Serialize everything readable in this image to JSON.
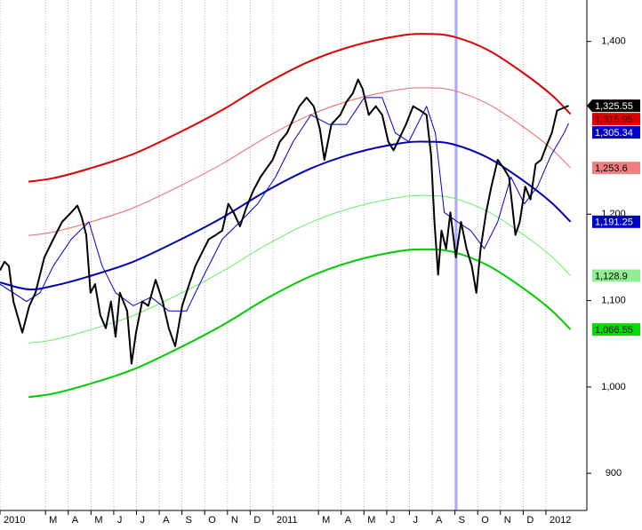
{
  "chart_data": {
    "type": "line",
    "xlim": [
      0,
      25.8
    ],
    "ylim": [
      857,
      1448
    ],
    "yticks": [
      900,
      {
        "value": 1000,
        "label": "1,000"
      },
      {
        "value": 1100,
        "label": "1,100"
      },
      {
        "value": 1200,
        "label": "1,200"
      },
      {
        "value": 1400,
        "label": "1,400"
      }
    ],
    "xticks": [
      {
        "value": 0,
        "label": "2010"
      },
      {
        "value": 2,
        "label": "M"
      },
      {
        "value": 3,
        "label": "A"
      },
      {
        "value": 4,
        "label": "M"
      },
      {
        "value": 5,
        "label": "J"
      },
      {
        "value": 6,
        "label": "J"
      },
      {
        "value": 7,
        "label": "A"
      },
      {
        "value": 8,
        "label": "S"
      },
      {
        "value": 9,
        "label": "O"
      },
      {
        "value": 10,
        "label": "N"
      },
      {
        "value": 11,
        "label": "D"
      },
      {
        "value": 12,
        "label": "2011"
      },
      {
        "value": 14,
        "label": "M"
      },
      {
        "value": 15,
        "label": "A"
      },
      {
        "value": 16,
        "label": "M"
      },
      {
        "value": 17,
        "label": "J"
      },
      {
        "value": 18,
        "label": "J"
      },
      {
        "value": 19,
        "label": "A"
      },
      {
        "value": 20,
        "label": "S"
      },
      {
        "value": 21,
        "label": "O"
      },
      {
        "value": 22,
        "label": "N"
      },
      {
        "value": 23,
        "label": "D"
      },
      {
        "value": 24,
        "label": "2012"
      }
    ],
    "grid": true,
    "series": [
      {
        "color": "#dd0000",
        "width": 2,
        "smooth": true,
        "x": [
          1.25,
          2.34,
          3.91,
          5.86,
          7.81,
          9.77,
          11.72,
          13.67,
          15.63,
          17.58,
          18.75,
          19.92,
          21.48,
          23.05,
          24.22,
          25.08
        ],
        "values": [
          1237.7,
          1241.7,
          1252.7,
          1269.7,
          1293.7,
          1320.7,
          1351.7,
          1377.7,
          1395.7,
          1406.7,
          1408.7,
          1405.7,
          1389.7,
          1362.7,
          1338.7,
          1315.95
        ],
        "last_label": "1,315.95",
        "label_fill": "#e00000",
        "label_text": "#3a0000"
      },
      {
        "color": "#ee6666",
        "width": 1,
        "smooth": true,
        "x": [
          1.25,
          2.34,
          3.91,
          5.86,
          7.81,
          9.77,
          11.72,
          13.67,
          15.63,
          17.58,
          18.75,
          19.92,
          21.48,
          23.05,
          24.22,
          25.08
        ],
        "values": [
          1175.35,
          1179.35,
          1190.35,
          1207.35,
          1231.35,
          1258.35,
          1289.35,
          1315.35,
          1333.35,
          1344.35,
          1346.35,
          1343.35,
          1327.35,
          1300.35,
          1276.35,
          1253.6
        ],
        "last_label": "1,253.6",
        "label_fill": "#f08080",
        "label_text": "#000000"
      },
      {
        "color": "#0000bb",
        "width": 2,
        "smooth": true,
        "x": [
          0,
          1.25,
          2.34,
          3.91,
          5.86,
          7.81,
          9.77,
          11.72,
          13.67,
          15.63,
          17.58,
          18.75,
          19.92,
          21.48,
          23.05,
          24.22,
          25.08
        ],
        "values": [
          1121,
          1113,
          1117,
          1128,
          1145,
          1169,
          1196,
          1227,
          1253,
          1271,
          1282,
          1284,
          1281,
          1265,
          1238,
          1214,
          1191.25
        ],
        "last_label": "1,191.25",
        "label_fill": "#0000cc",
        "label_text": "#ffffff"
      },
      {
        "color": "#66ee66",
        "width": 1,
        "smooth": true,
        "x": [
          1.25,
          2.34,
          3.91,
          5.86,
          7.81,
          9.77,
          11.72,
          13.67,
          15.63,
          17.58,
          18.75,
          19.92,
          21.48,
          23.05,
          24.22,
          25.08
        ],
        "values": [
          1050.65,
          1054.65,
          1065.65,
          1082.65,
          1106.65,
          1133.65,
          1164.65,
          1190.65,
          1208.65,
          1219.65,
          1221.65,
          1218.65,
          1202.65,
          1175.65,
          1151.65,
          1128.9
        ],
        "last_label": "1,128.9",
        "label_fill": "#90ee90",
        "label_text": "#000000"
      },
      {
        "color": "#00cc00",
        "width": 2,
        "smooth": true,
        "x": [
          1.25,
          2.34,
          3.91,
          5.86,
          7.81,
          9.77,
          11.72,
          13.67,
          15.63,
          17.58,
          18.75,
          19.92,
          21.48,
          23.05,
          24.22,
          25.08
        ],
        "values": [
          988.3,
          992.3,
          1003.3,
          1020.3,
          1044.3,
          1071.3,
          1102.3,
          1128.3,
          1146.3,
          1157.3,
          1159.3,
          1156.3,
          1140.3,
          1113.3,
          1089.3,
          1066.55
        ],
        "last_label": "1,066.55",
        "label_fill": "#00dd00",
        "label_text": "#000000"
      },
      {
        "color": "#0000cc",
        "width": 1,
        "smooth": false,
        "x": [
          0,
          1.17,
          1.76,
          2.34,
          3.13,
          3.91,
          4.49,
          5.08,
          5.86,
          6.64,
          7.42,
          8.2,
          8.98,
          9.77,
          10.55,
          11.33,
          12.11,
          12.89,
          13.67,
          14.45,
          15.23,
          16.02,
          16.8,
          17.38,
          17.97,
          18.75,
          19.14,
          19.53,
          20.12,
          20.7,
          21.29,
          21.88,
          22.46,
          23.05,
          23.63,
          24.22,
          24.8,
          25.0
        ],
        "values": [
          1119,
          1099,
          1109,
          1140,
          1171,
          1191,
          1140,
          1109,
          1094,
          1104,
          1088,
          1088,
          1130,
          1171,
          1191,
          1212,
          1243,
          1284,
          1315,
          1304,
          1304,
          1335,
          1335,
          1294,
          1284,
          1325,
          1294,
          1202,
          1191,
          1181,
          1160,
          1191,
          1243,
          1212,
          1232,
          1268,
          1294,
          1305.34
        ],
        "last_label": "1,305.34",
        "label_fill": "#0000cc",
        "label_text": "#ffffff"
      },
      {
        "color": "#000000",
        "width": 2,
        "smooth": false,
        "pointer": true,
        "x": [
          0,
          0.2,
          0.39,
          0.59,
          0.98,
          1.29,
          1.56,
          1.95,
          2.34,
          2.73,
          3.13,
          3.4,
          3.59,
          3.79,
          3.98,
          4.18,
          4.41,
          4.65,
          4.88,
          5.08,
          5.27,
          5.59,
          5.78,
          5.98,
          6.25,
          6.52,
          6.84,
          7.15,
          7.42,
          7.7,
          8.01,
          8.32,
          8.59,
          8.87,
          9.18,
          9.49,
          9.77,
          10.04,
          10.27,
          10.55,
          10.82,
          11.13,
          11.45,
          11.72,
          11.99,
          12.3,
          12.62,
          12.89,
          13.16,
          13.48,
          13.79,
          14.06,
          14.26,
          14.57,
          14.96,
          15.23,
          15.51,
          15.74,
          15.94,
          16.21,
          16.52,
          16.8,
          17.07,
          17.3,
          17.58,
          17.85,
          18.16,
          18.48,
          18.75,
          18.95,
          19.1,
          19.26,
          19.41,
          19.61,
          19.8,
          20.04,
          20.27,
          20.51,
          20.74,
          20.94,
          21.13,
          21.37,
          21.6,
          21.88,
          22.15,
          22.38,
          22.66,
          22.85,
          23.09,
          23.32,
          23.55,
          23.79,
          24.02,
          24.26,
          24.49,
          25.0
        ],
        "values": [
          1135,
          1145,
          1140,
          1099,
          1063,
          1094,
          1109,
          1150,
          1171,
          1191,
          1202,
          1210,
          1197,
          1176,
          1109,
          1119,
          1083,
          1068,
          1099,
          1058,
          1109,
          1088,
          1027,
          1063,
          1099,
          1094,
          1124,
          1099,
          1068,
          1047,
          1094,
          1119,
          1140,
          1155,
          1171,
          1176,
          1181,
          1212,
          1202,
          1186,
          1207,
          1227,
          1243,
          1253,
          1263,
          1284,
          1294,
          1310,
          1325,
          1335,
          1325,
          1299,
          1263,
          1304,
          1315,
          1330,
          1340,
          1356,
          1345,
          1315,
          1325,
          1315,
          1284,
          1274,
          1289,
          1304,
          1325,
          1320,
          1315,
          1268,
          1191,
          1130,
          1181,
          1160,
          1202,
          1150,
          1191,
          1160,
          1140,
          1109,
          1160,
          1202,
          1232,
          1263,
          1253,
          1243,
          1176,
          1191,
          1232,
          1217,
          1258,
          1263,
          1279,
          1294,
          1320,
          1325.55
        ],
        "last_label": "1,325.55",
        "label_fill": "#000000",
        "label_text": "#ffffff"
      }
    ]
  }
}
